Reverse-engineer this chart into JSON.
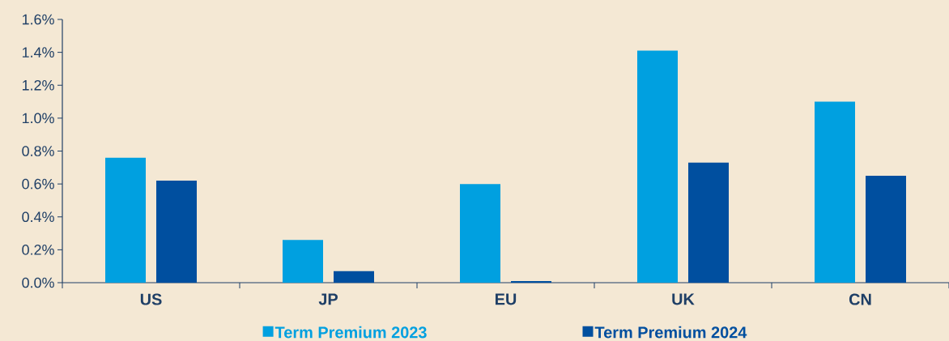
{
  "chart_data": {
    "type": "bar",
    "categories": [
      "US",
      "JP",
      "EU",
      "UK",
      "CN"
    ],
    "series": [
      {
        "name": "Term Premium 2023",
        "color": "#00A0E0",
        "values": [
          0.76,
          0.26,
          0.6,
          1.41,
          1.1
        ]
      },
      {
        "name": "Term Premium 2024",
        "color": "#004F9F",
        "values": [
          0.62,
          0.07,
          0.01,
          0.73,
          0.65
        ]
      }
    ],
    "ylim": [
      0,
      1.6
    ],
    "yticks": [
      {
        "value": 0,
        "label": "0.0%"
      },
      {
        "value": 0.2,
        "label": "0.2%"
      },
      {
        "value": 0.4,
        "label": "0.4%"
      },
      {
        "value": 0.6,
        "label": "0.6%"
      },
      {
        "value": 0.8,
        "label": "0.8%"
      },
      {
        "value": 1.0,
        "label": "1.0%"
      },
      {
        "value": 1.2,
        "label": "1.2%"
      },
      {
        "value": 1.4,
        "label": "1.4%"
      },
      {
        "value": 1.6,
        "label": "1.6%"
      }
    ],
    "grid": false,
    "legend": "bottom"
  }
}
